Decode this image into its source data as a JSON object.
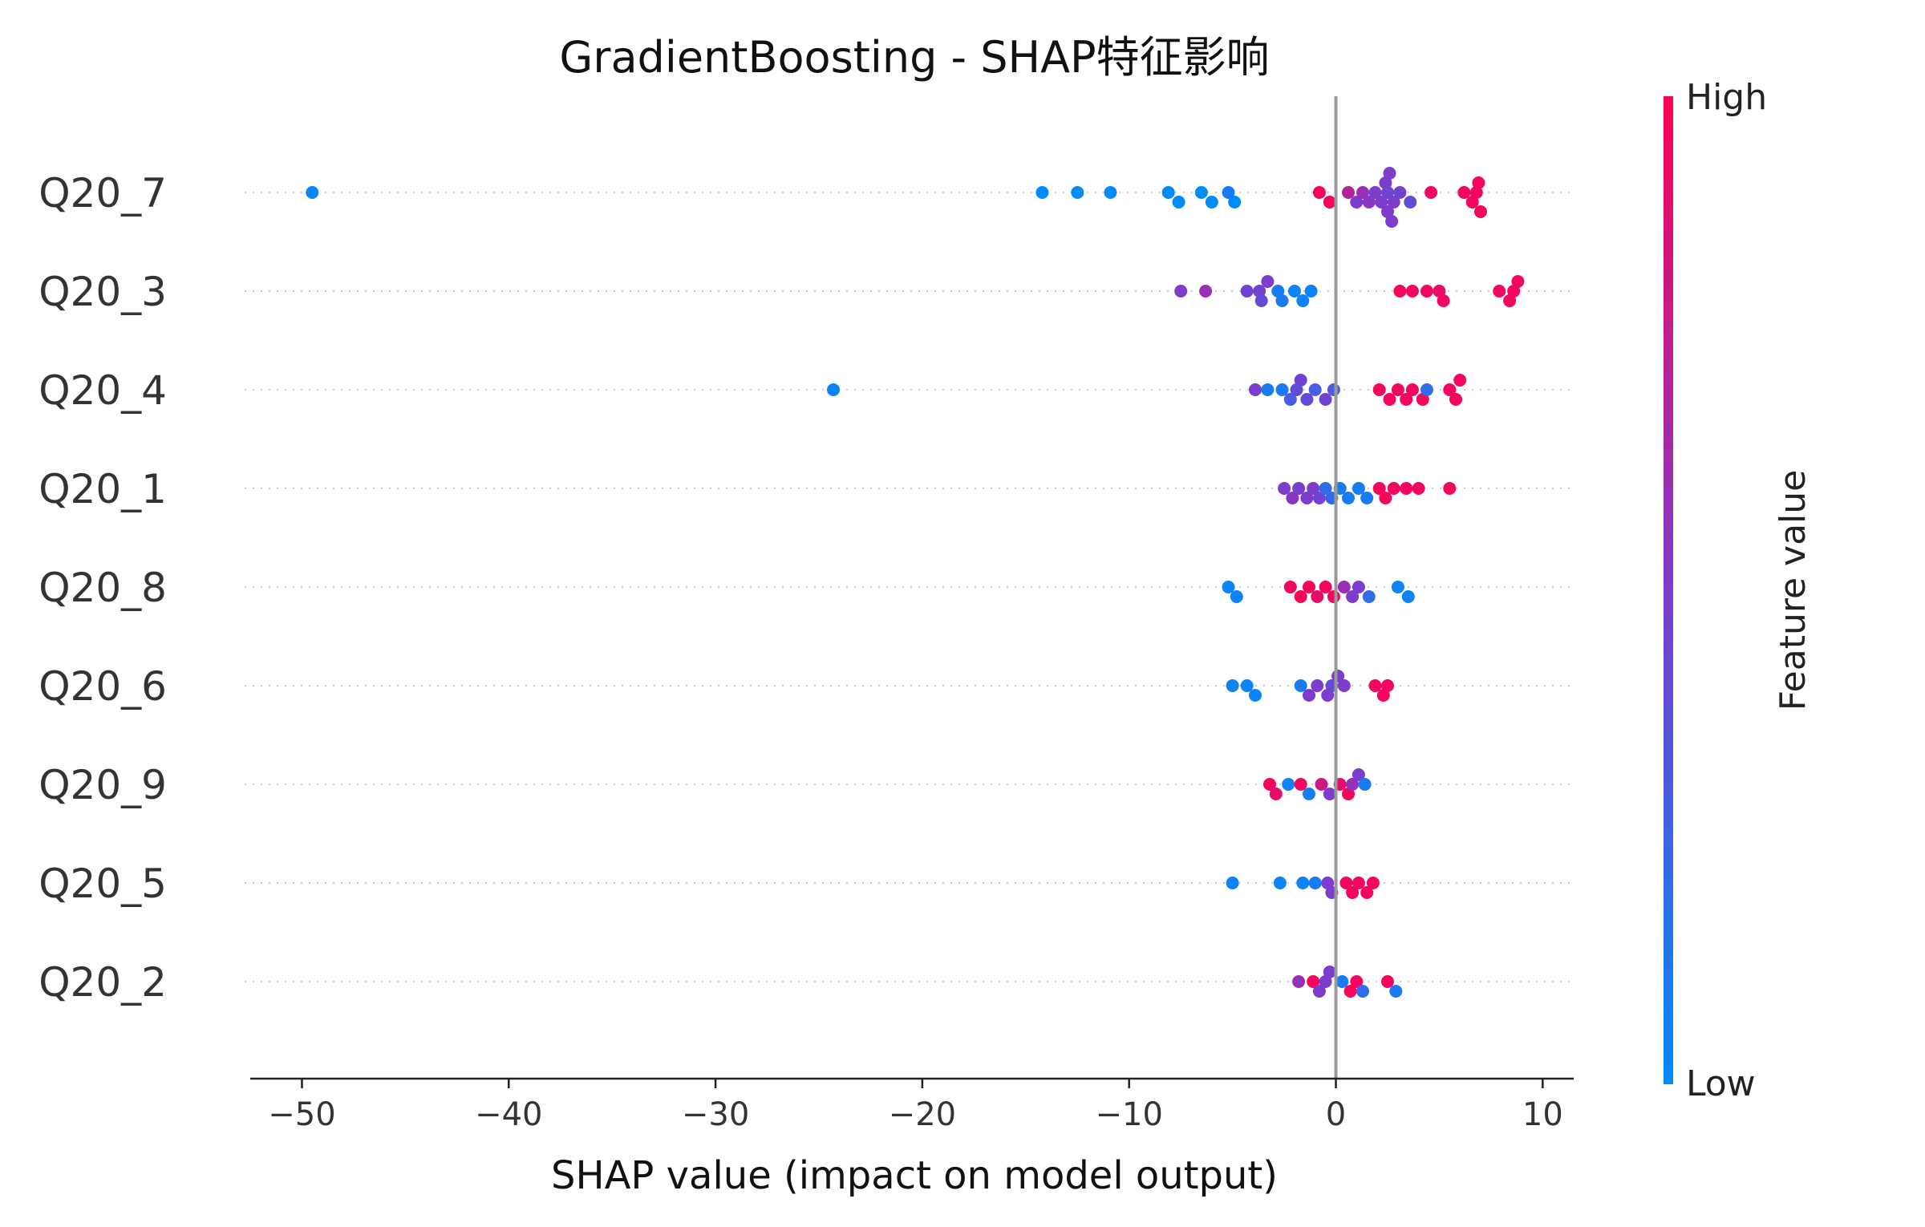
{
  "chart_data": {
    "type": "scatter",
    "title": "GradientBoosting - SHAP特征影响",
    "xlabel": "SHAP value (impact on model output)",
    "ylabel": "",
    "xlim": [
      -52.5,
      11.5
    ],
    "xticks": [
      -50,
      -40,
      -30,
      -20,
      -10,
      0,
      10
    ],
    "xtick_labels": [
      "−50",
      "−40",
      "−30",
      "−20",
      "−10",
      "0",
      "10"
    ],
    "zero_line": 0,
    "grid": false,
    "colorbar": {
      "title": "Feature value",
      "high_label": "High",
      "low_label": "Low",
      "high_color": "#ff0052",
      "mid_color": "#7c3ccc",
      "low_color": "#008bfb"
    },
    "features": [
      {
        "name": "Q20_7",
        "points": [
          [
            -49.5,
            0.05
          ],
          [
            -14.2,
            0.0
          ],
          [
            -12.5,
            0.0
          ],
          [
            -10.9,
            0.0
          ],
          [
            -8.1,
            0.0
          ],
          [
            -7.6,
            0.0
          ],
          [
            -6.5,
            0.0
          ],
          [
            -6.0,
            0.0
          ],
          [
            -5.2,
            0.1
          ],
          [
            -4.9,
            0.0
          ],
          [
            -0.8,
            0.95
          ],
          [
            -0.3,
            0.95
          ],
          [
            0.6,
            0.7
          ],
          [
            1.0,
            0.5
          ],
          [
            1.3,
            0.6
          ],
          [
            1.6,
            0.55
          ],
          [
            1.9,
            0.5
          ],
          [
            2.2,
            0.5
          ],
          [
            2.5,
            0.45
          ],
          [
            2.8,
            0.5
          ],
          [
            3.1,
            0.45
          ],
          [
            3.6,
            0.4
          ],
          [
            2.4,
            0.5
          ],
          [
            2.5,
            0.5
          ],
          [
            2.6,
            0.5
          ],
          [
            2.7,
            0.5
          ],
          [
            4.6,
            0.95
          ],
          [
            6.2,
            0.95
          ],
          [
            6.6,
            0.95
          ],
          [
            6.9,
            0.95
          ],
          [
            7.0,
            0.95
          ],
          [
            6.8,
            0.95
          ]
        ]
      },
      {
        "name": "Q20_3",
        "points": [
          [
            -7.5,
            0.5
          ],
          [
            -6.3,
            0.6
          ],
          [
            -4.3,
            0.45
          ],
          [
            -3.7,
            0.45
          ],
          [
            -3.3,
            0.5
          ],
          [
            -3.6,
            0.4
          ],
          [
            -2.6,
            0.1
          ],
          [
            -2.0,
            0.05
          ],
          [
            -1.6,
            0.05
          ],
          [
            -1.2,
            0.05
          ],
          [
            -2.8,
            0.1
          ],
          [
            3.1,
            0.95
          ],
          [
            3.7,
            0.95
          ],
          [
            4.4,
            0.95
          ],
          [
            5.0,
            0.9
          ],
          [
            5.2,
            0.95
          ],
          [
            7.9,
            0.95
          ],
          [
            8.4,
            0.95
          ],
          [
            8.6,
            0.95
          ],
          [
            8.8,
            0.95
          ]
        ]
      },
      {
        "name": "Q20_4",
        "points": [
          [
            -24.3,
            0.05
          ],
          [
            -3.9,
            0.5
          ],
          [
            -3.3,
            0.1
          ],
          [
            -2.6,
            0.1
          ],
          [
            -2.2,
            0.3
          ],
          [
            -1.9,
            0.4
          ],
          [
            -1.7,
            0.45
          ],
          [
            -1.4,
            0.4
          ],
          [
            -1.0,
            0.3
          ],
          [
            -0.5,
            0.45
          ],
          [
            -0.1,
            0.3
          ],
          [
            2.1,
            0.95
          ],
          [
            2.6,
            0.95
          ],
          [
            3.0,
            0.95
          ],
          [
            3.4,
            0.95
          ],
          [
            3.7,
            0.95
          ],
          [
            4.2,
            0.95
          ],
          [
            4.4,
            0.2
          ],
          [
            5.5,
            0.95
          ],
          [
            5.8,
            0.95
          ],
          [
            6.0,
            0.95
          ]
        ]
      },
      {
        "name": "Q20_1",
        "points": [
          [
            -2.5,
            0.5
          ],
          [
            -2.1,
            0.55
          ],
          [
            -1.8,
            0.5
          ],
          [
            -1.4,
            0.5
          ],
          [
            -1.1,
            0.5
          ],
          [
            -0.8,
            0.45
          ],
          [
            -0.5,
            0.2
          ],
          [
            -0.2,
            0.2
          ],
          [
            0.2,
            0.1
          ],
          [
            0.6,
            0.1
          ],
          [
            1.1,
            0.1
          ],
          [
            1.5,
            0.1
          ],
          [
            2.1,
            0.95
          ],
          [
            2.4,
            0.95
          ],
          [
            2.8,
            0.95
          ],
          [
            3.4,
            0.95
          ],
          [
            4.0,
            0.95
          ],
          [
            5.5,
            0.95
          ]
        ]
      },
      {
        "name": "Q20_8",
        "points": [
          [
            -5.2,
            0.05
          ],
          [
            -4.8,
            0.05
          ],
          [
            -2.2,
            0.95
          ],
          [
            -1.7,
            0.95
          ],
          [
            -1.3,
            0.95
          ],
          [
            -0.9,
            0.9
          ],
          [
            -0.5,
            0.95
          ],
          [
            -0.1,
            0.95
          ],
          [
            0.4,
            0.6
          ],
          [
            0.8,
            0.5
          ],
          [
            1.1,
            0.5
          ],
          [
            1.6,
            0.2
          ],
          [
            3.0,
            0.05
          ],
          [
            3.5,
            0.05
          ]
        ]
      },
      {
        "name": "Q20_6",
        "points": [
          [
            -5.0,
            0.05
          ],
          [
            -4.3,
            0.05
          ],
          [
            -3.9,
            0.05
          ],
          [
            -1.7,
            0.1
          ],
          [
            -1.3,
            0.5
          ],
          [
            -0.9,
            0.5
          ],
          [
            -0.4,
            0.5
          ],
          [
            -0.2,
            0.4
          ],
          [
            0.1,
            0.5
          ],
          [
            0.4,
            0.5
          ],
          [
            1.9,
            0.95
          ],
          [
            2.3,
            0.95
          ],
          [
            2.5,
            0.95
          ]
        ]
      },
      {
        "name": "Q20_9",
        "points": [
          [
            -3.2,
            0.95
          ],
          [
            -2.9,
            0.9
          ],
          [
            -2.3,
            0.05
          ],
          [
            -1.7,
            0.95
          ],
          [
            -1.3,
            0.1
          ],
          [
            -0.7,
            0.8
          ],
          [
            -0.3,
            0.5
          ],
          [
            0.2,
            0.9
          ],
          [
            0.6,
            0.95
          ],
          [
            0.8,
            0.6
          ],
          [
            1.1,
            0.5
          ],
          [
            1.4,
            0.1
          ]
        ]
      },
      {
        "name": "Q20_5",
        "points": [
          [
            -5.0,
            0.05
          ],
          [
            -2.7,
            0.05
          ],
          [
            -1.6,
            0.05
          ],
          [
            -1.0,
            0.1
          ],
          [
            -0.4,
            0.5
          ],
          [
            -0.2,
            0.5
          ],
          [
            0.5,
            0.95
          ],
          [
            0.8,
            0.95
          ],
          [
            1.1,
            0.95
          ],
          [
            1.5,
            0.95
          ],
          [
            1.8,
            0.95
          ]
        ]
      },
      {
        "name": "Q20_2",
        "points": [
          [
            -1.8,
            0.6
          ],
          [
            -1.1,
            0.95
          ],
          [
            -0.8,
            0.5
          ],
          [
            -0.5,
            0.5
          ],
          [
            -0.3,
            0.5
          ],
          [
            0.3,
            0.1
          ],
          [
            0.7,
            0.95
          ],
          [
            1.0,
            0.95
          ],
          [
            1.3,
            0.2
          ],
          [
            2.5,
            0.95
          ],
          [
            2.9,
            0.1
          ]
        ]
      }
    ]
  }
}
